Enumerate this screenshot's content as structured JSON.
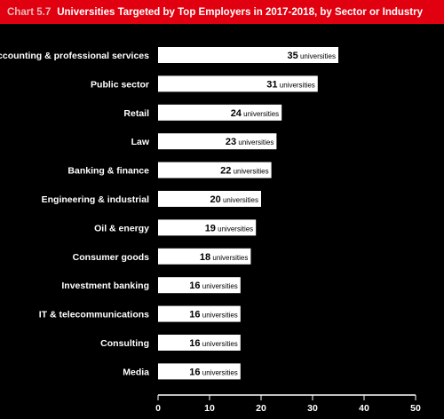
{
  "header": {
    "chart_label": "Chart 5.7",
    "chart_title": "Universities Targeted by Top Employers in 2017-2018, by Sector or Industry"
  },
  "colors": {
    "title_background": "#e0000f",
    "plot_background": "#000000",
    "bar": "#ffffff",
    "text": "#ffffff"
  },
  "chart_data": {
    "type": "bar",
    "orientation": "horizontal",
    "title": "Universities Targeted by Top Employers in 2017-2018, by Sector or Industry",
    "categories": [
      "Accounting & professional services",
      "Public sector",
      "Retail",
      "Law",
      "Banking & finance",
      "Engineering & industrial",
      "Oil & energy",
      "Consumer goods",
      "Investment banking",
      "IT & telecommunications",
      "Consulting",
      "Media"
    ],
    "values": [
      35,
      31,
      24,
      23,
      22,
      20,
      19,
      18,
      16,
      16,
      16,
      16
    ],
    "value_unit": "universities",
    "xlim": [
      0,
      50
    ],
    "xticks": [
      0,
      10,
      20,
      30,
      40,
      50
    ],
    "xlabel": "",
    "ylabel": "",
    "grid": false,
    "legend": "none"
  }
}
